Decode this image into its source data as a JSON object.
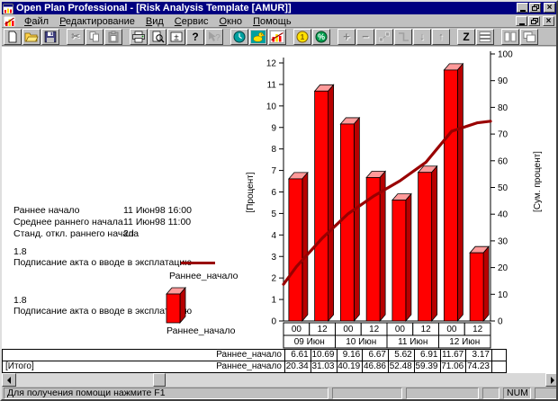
{
  "window": {
    "title": "Open Plan Professional - [Risk Analysis Template [AMUR]]",
    "menu": [
      "Файл",
      "Редактирование",
      "Вид",
      "Сервис",
      "Окно",
      "Помощь"
    ]
  },
  "status": {
    "message": "Для получения помощи нажмите F1",
    "num": "NUM"
  },
  "toolbar": {
    "groups": [
      [
        {
          "name": "new-document",
          "icon": "new-document-icon",
          "enabled": true
        },
        {
          "name": "open",
          "icon": "open-folder-icon",
          "enabled": true
        },
        {
          "name": "save",
          "icon": "save-icon",
          "enabled": true
        }
      ],
      [
        {
          "name": "cut",
          "icon": "scissors-icon",
          "enabled": false
        },
        {
          "name": "copy",
          "icon": "copy-icon",
          "enabled": false
        },
        {
          "name": "paste",
          "icon": "paste-icon",
          "enabled": false
        }
      ],
      [
        {
          "name": "print",
          "icon": "printer-icon",
          "enabled": true
        },
        {
          "name": "print-preview",
          "icon": "print-preview-icon",
          "enabled": true
        },
        {
          "name": "spreadsheet",
          "icon": "plus-minus-grid-icon",
          "enabled": true
        },
        {
          "name": "help",
          "icon": "question-mark-icon",
          "enabled": true
        },
        {
          "name": "context-help",
          "icon": "context-help-icon",
          "enabled": false
        }
      ],
      [
        {
          "name": "time-analysis",
          "icon": "clock-icon",
          "enabled": true
        },
        {
          "name": "resource-analysis",
          "icon": "duck-icon",
          "enabled": true
        },
        {
          "name": "risk-analysis",
          "icon": "bar-chart-icon",
          "enabled": true
        }
      ],
      [
        {
          "name": "cost",
          "icon": "coin-icon",
          "enabled": true
        },
        {
          "name": "percent-complete",
          "icon": "percent-icon",
          "enabled": true
        }
      ],
      [
        {
          "name": "add-activity",
          "icon": "plus-icon",
          "enabled": false
        },
        {
          "name": "delete-activity",
          "icon": "minus-icon",
          "enabled": false
        },
        {
          "name": "link-activities",
          "icon": "link-dots-icon",
          "enabled": false
        },
        {
          "name": "unlink-activities",
          "icon": "link-step-icon",
          "enabled": false
        },
        {
          "name": "move-down",
          "icon": "arrow-down-icon",
          "enabled": false
        },
        {
          "name": "move-up",
          "icon": "arrow-up-icon",
          "enabled": false
        }
      ],
      [
        {
          "name": "sort",
          "icon": "letter-z-icon",
          "enabled": true
        },
        {
          "name": "outline",
          "icon": "outline-icon",
          "enabled": false
        }
      ],
      [
        {
          "name": "tile-windows",
          "icon": "tile-icon",
          "enabled": false
        },
        {
          "name": "cascade-windows",
          "icon": "cascade-icon",
          "enabled": false
        }
      ]
    ]
  },
  "stats": {
    "rows": [
      {
        "label": "Раннее начало",
        "value": "11 Июн98 16:00"
      },
      {
        "label": "Среднее раннего начала",
        "value": "11 Июн98 11:00"
      },
      {
        "label": "Станд. откл.  раннего начала",
        "value": "2d"
      }
    ]
  },
  "legend": [
    {
      "id": "1.8",
      "desc": "Подписание акта о вводе в эксплатацию",
      "series": "Раннее_начало",
      "swatch": "line"
    },
    {
      "id": "1.8",
      "desc": "Подписание акта о вводе в эксплатацию",
      "series": "Раннее_начало",
      "swatch": "bar"
    }
  ],
  "chart_data": {
    "type": "bar",
    "categories_time": [
      "00",
      "12",
      "00",
      "12",
      "00",
      "12",
      "00",
      "12"
    ],
    "categories_date": [
      "09 Июн",
      "10 Июн",
      "11 Июн",
      "12 Июн"
    ],
    "series": [
      {
        "name": "Раннее_начало",
        "type": "bar",
        "axis": "left",
        "values": [
          6.61,
          10.69,
          9.16,
          6.67,
          5.62,
          6.91,
          11.67,
          3.17
        ]
      },
      {
        "name": "Раннее_начало [Итого]",
        "type": "line",
        "axis": "right",
        "values": [
          20.34,
          31.03,
          40.19,
          46.86,
          52.48,
          59.39,
          71.06,
          74.23
        ],
        "start_value": 13.73,
        "end_value": 74.8
      }
    ],
    "ylabel_left": "[Процент]",
    "ylabel_right": "[Сум. процент]",
    "ylim_left": [
      0,
      12
    ],
    "ylim_right": [
      0,
      100
    ],
    "ytick_step_left": 1,
    "ytick_step_right": 10,
    "grid": false,
    "bar_color": "#ff0000",
    "bar_top_color": "#ff9a9a",
    "bar_side_color": "#b80000",
    "line_color": "#990000"
  },
  "table": {
    "rows": [
      {
        "group": "",
        "series": "Раннее_начало",
        "values": [
          "6.61",
          "10.69",
          "9.16",
          "6.67",
          "5.62",
          "6.91",
          "11.67",
          "3.17"
        ]
      },
      {
        "group": "[Итого]",
        "series": "Раннее_начало",
        "values": [
          "20.34",
          "31.03",
          "40.19",
          "46.86",
          "52.48",
          "59.39",
          "71.06",
          "74.23"
        ]
      }
    ]
  },
  "colors": {
    "titlebar": "#000080",
    "chrome": "#c0c0c0"
  }
}
